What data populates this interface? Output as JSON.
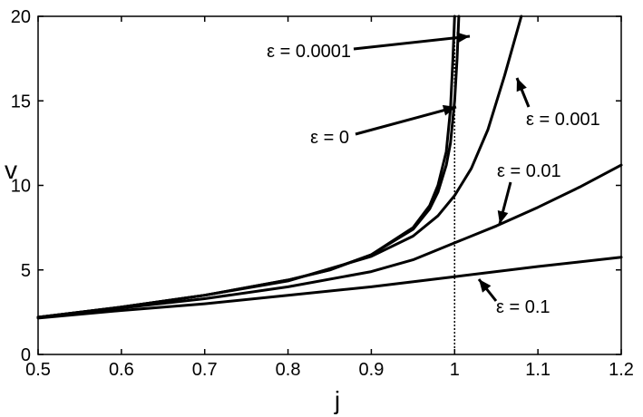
{
  "chart_data": {
    "type": "line",
    "title": "",
    "xlabel": "j",
    "ylabel": "v",
    "xlim": [
      0.5,
      1.2
    ],
    "ylim": [
      0,
      20
    ],
    "xticks": [
      0.5,
      0.6,
      0.7,
      0.8,
      0.9,
      1,
      1.1,
      1.2
    ],
    "yticks": [
      0,
      5,
      10,
      15,
      20
    ],
    "grid": false,
    "legend": "none",
    "series": [
      {
        "id": "eps0",
        "x": [
          0.5,
          0.6,
          0.7,
          0.8,
          0.85,
          0.9,
          0.95,
          0.97,
          0.98,
          0.99,
          0.995,
          0.998,
          1.0
        ],
        "y": [
          2.2,
          2.8,
          3.5,
          4.4,
          5.0,
          5.9,
          7.5,
          8.8,
          10.0,
          12.0,
          14.5,
          17.5,
          20
        ]
      },
      {
        "id": "eps0.0001",
        "x": [
          0.5,
          0.6,
          0.7,
          0.8,
          0.85,
          0.9,
          0.95,
          0.97,
          0.98,
          0.99,
          0.995,
          1.0,
          1.003,
          1.005
        ],
        "y": [
          2.2,
          2.8,
          3.5,
          4.4,
          5.0,
          5.9,
          7.4,
          8.6,
          9.6,
          11.2,
          12.5,
          15.0,
          17.5,
          20
        ]
      },
      {
        "id": "eps0.001",
        "x": [
          0.5,
          0.6,
          0.7,
          0.8,
          0.9,
          0.95,
          0.98,
          1.0,
          1.02,
          1.04,
          1.06,
          1.08
        ],
        "y": [
          2.2,
          2.8,
          3.5,
          4.35,
          5.8,
          7.0,
          8.2,
          9.4,
          11.0,
          13.3,
          16.5,
          20
        ]
      },
      {
        "id": "eps0.01",
        "x": [
          0.5,
          0.6,
          0.7,
          0.8,
          0.9,
          0.95,
          1.0,
          1.05,
          1.1,
          1.15,
          1.2
        ],
        "y": [
          2.2,
          2.75,
          3.3,
          4.0,
          4.9,
          5.6,
          6.6,
          7.6,
          8.7,
          9.9,
          11.2
        ]
      },
      {
        "id": "eps0.1",
        "x": [
          0.5,
          0.6,
          0.7,
          0.8,
          0.9,
          1.0,
          1.1,
          1.2
        ],
        "y": [
          2.15,
          2.6,
          3.0,
          3.5,
          4.0,
          4.6,
          5.2,
          5.75
        ]
      }
    ],
    "vline_x": 1,
    "annotations": [
      {
        "id": "ann-0.0001",
        "text": "ε = 0.0001",
        "series": "eps0.0001"
      },
      {
        "id": "ann-0",
        "text": "ε = 0",
        "series": "eps0"
      },
      {
        "id": "ann-0.001",
        "text": "ε = 0.001",
        "series": "eps0.001"
      },
      {
        "id": "ann-0.01",
        "text": "ε = 0.01",
        "series": "eps0.01"
      },
      {
        "id": "ann-0.1",
        "text": "ε = 0.1",
        "series": "eps0.1"
      }
    ]
  }
}
